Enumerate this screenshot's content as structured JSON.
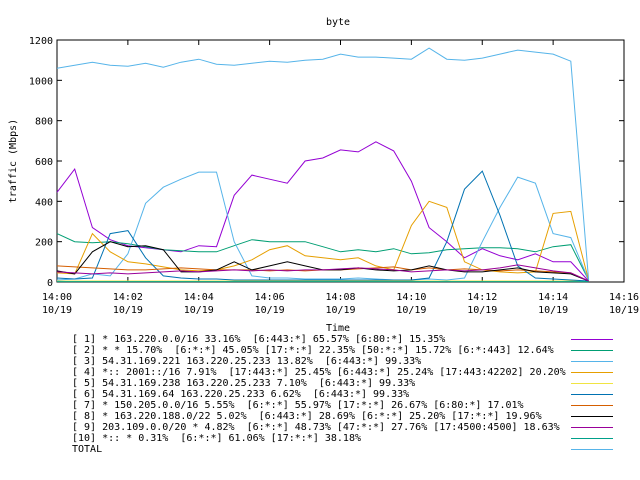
{
  "chart_data": {
    "type": "line",
    "title": "byte",
    "xlabel": "Time",
    "ylabel": "traffic (Mbps)",
    "ylim": [
      0,
      1200
    ],
    "y_ticks": [
      0,
      200,
      400,
      600,
      800,
      1000,
      1200
    ],
    "x_range_minutes": [
      0,
      16
    ],
    "x_ticks": [
      {
        "minute": 0,
        "time": "14:00",
        "date": "10/19"
      },
      {
        "minute": 2,
        "time": "14:02",
        "date": "10/19"
      },
      {
        "minute": 4,
        "time": "14:04",
        "date": "10/19"
      },
      {
        "minute": 6,
        "time": "14:06",
        "date": "10/19"
      },
      {
        "minute": 8,
        "time": "14:08",
        "date": "10/19"
      },
      {
        "minute": 10,
        "time": "14:10",
        "date": "10/19"
      },
      {
        "minute": 12,
        "time": "14:12",
        "date": "10/19"
      },
      {
        "minute": 14,
        "time": "14:14",
        "date": "10/19"
      },
      {
        "minute": 16,
        "time": "14:16",
        "date": "10/19"
      }
    ],
    "grid": false,
    "legend_position": "bottom",
    "x": [
      0,
      0.5,
      1,
      1.5,
      2,
      2.5,
      3,
      3.5,
      4,
      4.5,
      5,
      5.5,
      6,
      6.5,
      7,
      7.5,
      8,
      8.5,
      9,
      9.5,
      10,
      10.5,
      11,
      11.5,
      12,
      12.5,
      13,
      13.5,
      14,
      14.5,
      15
    ],
    "series": [
      {
        "name": "[ 1] * 163.220.0.0/16 33.16%  [6:443:*] 65.57% [6:80:*] 15.35%",
        "color": "#9400d3",
        "values": [
          445,
          560,
          270,
          210,
          180,
          170,
          160,
          150,
          180,
          175,
          430,
          530,
          510,
          490,
          600,
          615,
          655,
          645,
          695,
          650,
          500,
          270,
          200,
          120,
          165,
          130,
          110,
          140,
          100,
          100,
          5
        ]
      },
      {
        "name": "[ 2] * * 15.70%  [6:*:*] 45.05% [17:*:*] 22.35% [50:*:*] 15.72% [6:*:443] 12.64%",
        "color": "#009e73",
        "values": [
          240,
          200,
          195,
          200,
          190,
          175,
          160,
          155,
          150,
          150,
          180,
          210,
          200,
          200,
          200,
          175,
          150,
          160,
          150,
          165,
          140,
          145,
          160,
          165,
          170,
          170,
          165,
          150,
          175,
          185,
          10
        ]
      },
      {
        "name": "[ 3] 54.31.169.221 163.220.25.233 13.82%  [6:443:*] 99.33%",
        "color": "#56b4e9",
        "values": [
          10,
          15,
          40,
          30,
          140,
          390,
          470,
          510,
          545,
          545,
          200,
          30,
          20,
          20,
          15,
          15,
          15,
          20,
          15,
          10,
          10,
          15,
          10,
          20,
          200,
          370,
          520,
          490,
          240,
          220,
          10
        ]
      },
      {
        "name": "[ 4] *:: 2001::/16 7.91%  [17:443:*] 25.45% [6:443:*] 25.24% [17:443:42202] 20.20%",
        "color": "#e69f00",
        "values": [
          45,
          40,
          240,
          150,
          100,
          90,
          75,
          60,
          55,
          60,
          80,
          110,
          160,
          180,
          130,
          120,
          110,
          120,
          80,
          60,
          280,
          400,
          370,
          100,
          60,
          50,
          45,
          50,
          340,
          350,
          10
        ]
      },
      {
        "name": "[ 5] 54.31.169.238 163.220.25.233 7.10%  [6:443:*] 99.33%",
        "color": "#f0e442",
        "values": [
          5,
          5,
          5,
          5,
          5,
          5,
          5,
          5,
          5,
          5,
          5,
          5,
          5,
          5,
          5,
          5,
          5,
          5,
          5,
          5,
          5,
          5,
          5,
          5,
          5,
          5,
          5,
          5,
          5,
          5,
          5
        ]
      },
      {
        "name": "[ 6] 54.31.169.64 163.220.25.233 6.62%  [6:443:*] 99.33%",
        "color": "#0072b2",
        "values": [
          20,
          15,
          20,
          240,
          255,
          120,
          30,
          20,
          15,
          15,
          10,
          10,
          10,
          10,
          10,
          10,
          10,
          10,
          10,
          10,
          10,
          20,
          200,
          460,
          550,
          330,
          80,
          20,
          15,
          10,
          5
        ]
      },
      {
        "name": "[ 7] * 150.205.0.0/16 5.55%  [6:*:*] 55.97% [17:*:*] 26.67% [6:80:*] 17.01%",
        "color": "#d55e00",
        "values": [
          80,
          75,
          70,
          65,
          60,
          60,
          65,
          70,
          65,
          60,
          60,
          60,
          55,
          60,
          55,
          60,
          60,
          65,
          70,
          75,
          60,
          70,
          60,
          65,
          60,
          55,
          60,
          55,
          50,
          45,
          5
        ]
      },
      {
        "name": "[ 8] * 163.220.188.0/22 5.02%  [6:443:*] 28.69% [6:*:*] 25.20% [17:*:*] 19.96%",
        "color": "#000000",
        "values": [
          55,
          40,
          150,
          200,
          175,
          180,
          160,
          50,
          50,
          60,
          100,
          60,
          80,
          100,
          80,
          60,
          60,
          70,
          60,
          55,
          60,
          80,
          60,
          50,
          50,
          60,
          70,
          50,
          45,
          40,
          5
        ]
      },
      {
        "name": "[ 9] 203.109.0.0/20 * 4.82%  [6:*:*] 48.73% [47:*:*] 27.76% [17:4500:4500] 18.63%",
        "color": "#990099",
        "values": [
          50,
          45,
          40,
          45,
          40,
          45,
          50,
          55,
          50,
          55,
          60,
          55,
          60,
          55,
          60,
          60,
          65,
          70,
          65,
          60,
          50,
          55,
          60,
          55,
          60,
          70,
          85,
          70,
          55,
          45,
          5
        ]
      },
      {
        "name": "[10] *:: * 0.31%  [6:*:*] 61.06% [17:*:*] 38.18%",
        "color": "#00a08a",
        "values": [
          2,
          2,
          2,
          2,
          2,
          2,
          2,
          2,
          2,
          2,
          2,
          2,
          2,
          2,
          2,
          2,
          2,
          2,
          2,
          2,
          2,
          2,
          2,
          2,
          2,
          2,
          2,
          2,
          2,
          2,
          2
        ]
      },
      {
        "name": "TOTAL",
        "color": "#56b4e9",
        "values": [
          1060,
          1075,
          1090,
          1075,
          1070,
          1085,
          1065,
          1090,
          1105,
          1080,
          1075,
          1085,
          1095,
          1090,
          1100,
          1105,
          1130,
          1115,
          1115,
          1110,
          1105,
          1160,
          1105,
          1100,
          1110,
          1130,
          1150,
          1140,
          1130,
          1095,
          10
        ]
      }
    ]
  }
}
